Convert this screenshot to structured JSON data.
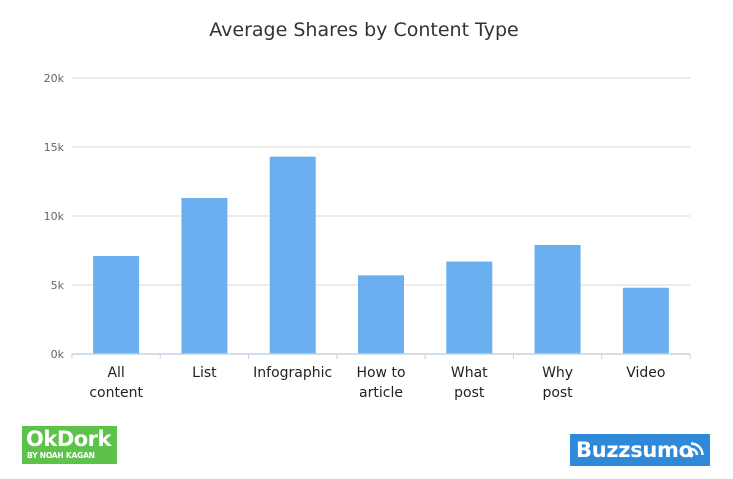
{
  "chart_data": {
    "type": "bar",
    "title": "Average Shares by Content Type",
    "categories": [
      [
        "All",
        "content"
      ],
      [
        "List"
      ],
      [
        "Infographic"
      ],
      [
        "How to",
        "article"
      ],
      [
        "What",
        "post"
      ],
      [
        "Why",
        "post"
      ],
      [
        "Video"
      ]
    ],
    "values": [
      7100,
      11300,
      14300,
      5700,
      6700,
      7900,
      4800
    ],
    "yticks": [
      0,
      5000,
      10000,
      15000,
      20000
    ],
    "ytick_labels": [
      "0k",
      "5k",
      "10k",
      "15k",
      "20k"
    ],
    "ylim": [
      0,
      20000
    ],
    "grid": true,
    "colors": {
      "bar": "#6aaff0",
      "grid": "#d8d8d8",
      "axis": "#c6d3e2"
    }
  },
  "logos": {
    "okdork": {
      "main": "OkDork",
      "sub": "BY NOAH KAGAN",
      "color": "#5cc24a"
    },
    "buzzsumo": {
      "text": "Buzzsumo",
      "color": "#2e8ad8"
    }
  }
}
